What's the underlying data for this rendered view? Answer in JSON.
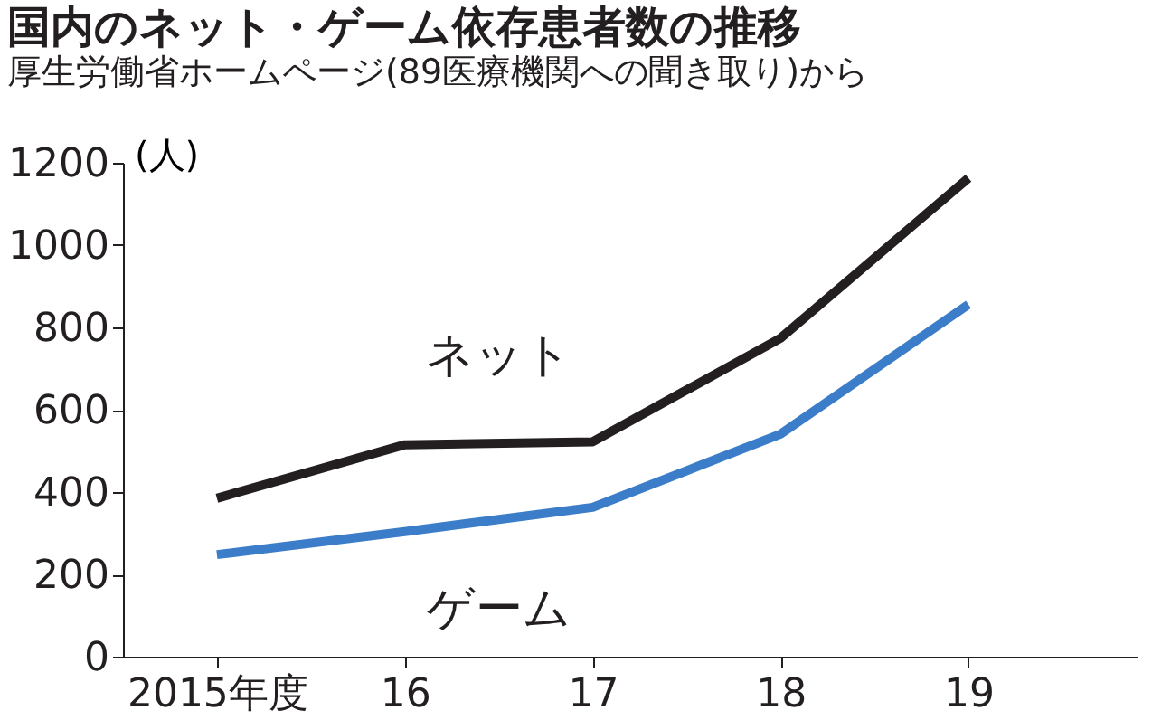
{
  "chart_data": {
    "type": "line",
    "title": "国内のネット・ゲーム依存患者数の推移",
    "subtitle": "厚生労働省ホームページ(89医療機関への聞き取り)から",
    "ylabel": "(人)",
    "categories": [
      "2015年度",
      "16",
      "17",
      "18",
      "19"
    ],
    "series": [
      {
        "name": "ネット",
        "color": "#231f20",
        "values": [
          385,
          515,
          522,
          774,
          1163
        ]
      },
      {
        "name": "ゲーム",
        "color": "#3b7dc8",
        "values": [
          248,
          304,
          363,
          541,
          856
        ]
      }
    ],
    "ylim": [
      0,
      1200
    ],
    "yticks": [
      0,
      200,
      400,
      600,
      800,
      1000,
      1200
    ],
    "grid": false,
    "legend": false,
    "marker": "none",
    "line_style": "solid"
  }
}
